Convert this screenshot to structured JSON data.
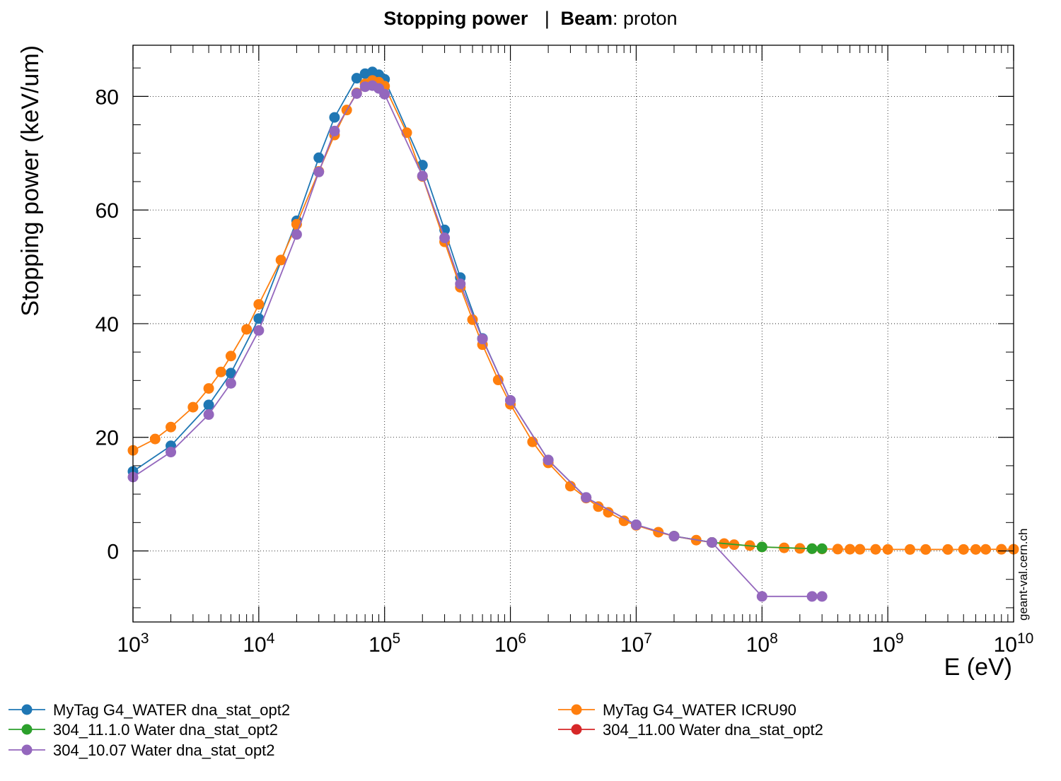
{
  "chart_data": {
    "type": "line",
    "title_parts": {
      "label1": "Stopping power",
      "sep": "|",
      "label2": "Beam",
      "value2": ": proton"
    },
    "xlabel": "E (eV)",
    "ylabel": "Stopping power (keV/um)",
    "xscale": "log",
    "xlim": [
      1000,
      10000000000
    ],
    "ylim": [
      -12.5,
      89
    ],
    "xticks": [
      {
        "value": 1000,
        "base": "10",
        "exp": "3"
      },
      {
        "value": 10000,
        "base": "10",
        "exp": "4"
      },
      {
        "value": 100000,
        "base": "10",
        "exp": "5"
      },
      {
        "value": 1000000,
        "base": "10",
        "exp": "6"
      },
      {
        "value": 10000000,
        "base": "10",
        "exp": "7"
      },
      {
        "value": 100000000,
        "base": "10",
        "exp": "8"
      },
      {
        "value": 1000000000,
        "base": "10",
        "exp": "9"
      },
      {
        "value": 10000000000,
        "base": "10",
        "exp": "10"
      }
    ],
    "yticks": [
      0,
      20,
      40,
      60,
      80
    ],
    "grid": true,
    "watermark": "geant-val.cern.ch",
    "legend_position": "bottom",
    "series": [
      {
        "name": "MyTag G4_WATER dna_stat_opt2",
        "color": "#1f77b4",
        "x": [
          1000,
          2000,
          4000,
          6000,
          10000,
          20000,
          30000,
          40000,
          60000,
          70000,
          80000,
          90000,
          100000,
          200000,
          300000,
          400000,
          600000,
          1000000,
          2000000,
          4000000,
          10000000,
          20000000,
          40000000
        ],
        "y": [
          14.0,
          18.5,
          25.7,
          31.3,
          40.9,
          58.1,
          69.2,
          76.3,
          83.2,
          84.0,
          84.3,
          83.8,
          83.0,
          67.9,
          56.5,
          48.1,
          37.4,
          26.5,
          16.0,
          9.4,
          4.6,
          2.6,
          1.5
        ]
      },
      {
        "name": "304_11.1.0 Water dna_stat_opt2",
        "color": "#2ca02c",
        "x": [
          20000000,
          40000000,
          100000000,
          250000000,
          300000000
        ],
        "y": [
          2.6,
          1.5,
          0.7,
          0.4,
          0.4
        ]
      },
      {
        "name": "304_10.07 Water dna_stat_opt2",
        "color": "#9467bd",
        "x": [
          1000,
          2000,
          4000,
          6000,
          10000,
          20000,
          30000,
          40000,
          60000,
          70000,
          80000,
          90000,
          100000,
          200000,
          300000,
          400000,
          600000,
          1000000,
          2000000,
          4000000,
          10000000,
          20000000,
          40000000,
          100000000,
          250000000,
          300000000
        ],
        "y": [
          13.0,
          17.4,
          24.0,
          29.5,
          38.8,
          55.7,
          66.7,
          73.9,
          80.5,
          81.7,
          81.9,
          81.4,
          80.4,
          66.0,
          55.1,
          47.0,
          37.3,
          26.5,
          16.0,
          9.4,
          4.6,
          2.6,
          1.5,
          -8.0,
          -8.0,
          -8.0
        ]
      },
      {
        "name": "MyTag G4_WATER ICRU90",
        "color": "#ff7f0e",
        "x": [
          1000,
          1500,
          2000,
          3000,
          4000,
          5000,
          6000,
          8000,
          10000,
          15000,
          20000,
          30000,
          40000,
          50000,
          60000,
          70000,
          80000,
          90000,
          100000,
          150000,
          200000,
          300000,
          400000,
          500000,
          600000,
          800000,
          1000000,
          1500000,
          2000000,
          3000000,
          4000000,
          5000000,
          6000000,
          8000000,
          10000000,
          15000000,
          20000000,
          30000000,
          40000000,
          50000000,
          60000000,
          80000000,
          100000000,
          150000000,
          200000000,
          250000000,
          300000000,
          400000000,
          500000000,
          600000000,
          800000000,
          1000000000,
          1500000000,
          2000000000,
          3000000000,
          4000000000,
          5000000000,
          6000000000,
          8000000000,
          10000000000
        ],
        "y": [
          17.7,
          19.7,
          21.8,
          25.3,
          28.6,
          31.5,
          34.3,
          39.0,
          43.4,
          51.2,
          57.5,
          66.8,
          73.2,
          77.6,
          80.6,
          82.2,
          82.8,
          82.5,
          81.8,
          73.6,
          65.9,
          54.4,
          46.4,
          40.7,
          36.3,
          30.1,
          25.8,
          19.2,
          15.5,
          11.4,
          9.3,
          7.8,
          6.8,
          5.3,
          4.5,
          3.3,
          2.6,
          1.9,
          1.5,
          1.3,
          1.1,
          0.95,
          0.7,
          0.55,
          0.45,
          0.4,
          0.35,
          0.32,
          0.3,
          0.29,
          0.28,
          0.27,
          0.26,
          0.26,
          0.26,
          0.27,
          0.27,
          0.28,
          0.29,
          0.3
        ]
      },
      {
        "name": "304_11.00 Water dna_stat_opt2",
        "color": "#d62728",
        "x": [],
        "y": []
      }
    ]
  }
}
